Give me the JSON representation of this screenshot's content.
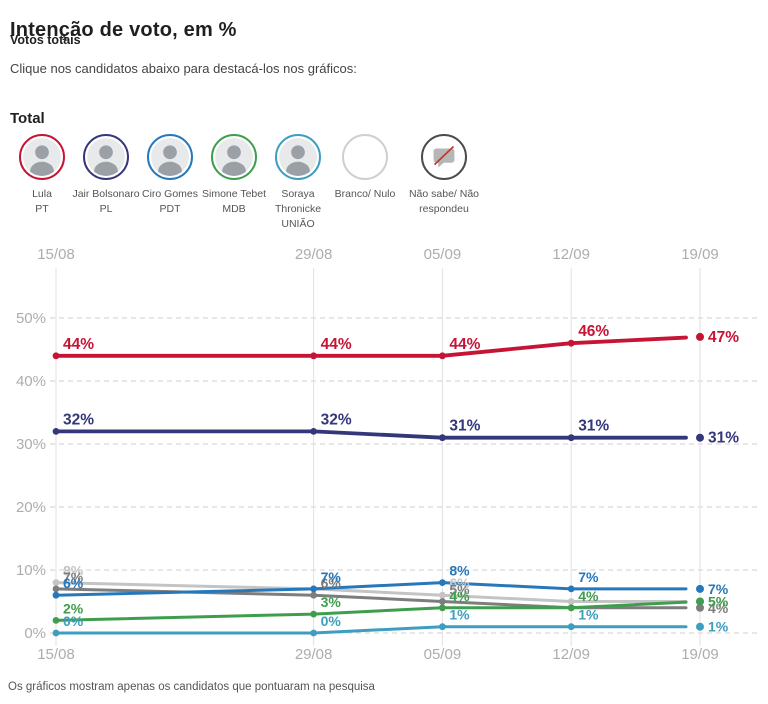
{
  "header": {
    "title": "Intenção de voto, em %",
    "subtitle": "Votos totais",
    "instruction": "Clique nos candidatos abaixo para destacá-los nos gráficos:"
  },
  "section": {
    "label": "Total"
  },
  "candidates": [
    {
      "id": "lula",
      "label_lines": [
        "Lula",
        "PT"
      ],
      "ring_color": "#c51434",
      "avatar": "photo"
    },
    {
      "id": "bolsonaro",
      "label_lines": [
        "Jair Bolsonaro",
        "PL"
      ],
      "ring_color": "#34387a",
      "avatar": "photo"
    },
    {
      "id": "ciro",
      "label_lines": [
        "Ciro Gomes",
        "PDT"
      ],
      "ring_color": "#2678bb",
      "avatar": "photo"
    },
    {
      "id": "tebet",
      "label_lines": [
        "Simone Tebet",
        "MDB"
      ],
      "ring_color": "#3f9e4d",
      "avatar": "photo"
    },
    {
      "id": "soraya",
      "label_lines": [
        "Soraya",
        "Thronicke",
        "UNIÃO"
      ],
      "ring_color": "#3d9ec0",
      "avatar": "photo"
    },
    {
      "id": "branco-nulo",
      "label_lines": [
        "Branco/ Nulo"
      ],
      "ring_color": "#cfcfcf",
      "avatar": "empty"
    },
    {
      "id": "nao-sabe",
      "label_lines": [
        "Não sabe/ Não",
        "respondeu"
      ],
      "ring_color": "#4c4c4c",
      "avatar": "no-answer"
    }
  ],
  "chart_data": {
    "type": "line",
    "x_labels": [
      "15/08",
      "29/08",
      "05/09",
      "12/09",
      "19/09"
    ],
    "x_days": [
      0,
      14,
      21,
      28,
      35
    ],
    "y_ticks": [
      "0%",
      "10%",
      "20%",
      "30%",
      "40%",
      "50%"
    ],
    "ylim": [
      0,
      50
    ],
    "grid": "horizontal-dashed, vertical-solid",
    "legend_position": "candidate avatars above chart",
    "series": [
      {
        "id": "branco-nulo",
        "name": "Branco/ Nulo",
        "color": "#c4c4c4",
        "width": 3,
        "values": [
          8,
          7,
          6,
          5,
          5
        ],
        "labels": [
          "8%",
          "7%",
          "6%",
          "",
          "5%"
        ]
      },
      {
        "id": "nao-sabe",
        "name": "Não sabe/ Não respondeu",
        "color": "#7d7d7d",
        "width": 3,
        "values": [
          7,
          6,
          5,
          4,
          4
        ],
        "labels": [
          "7%",
          "6%",
          "5%",
          "",
          "4%"
        ]
      },
      {
        "id": "soraya",
        "name": "Soraya Thronicke",
        "color": "#3d9ec0",
        "width": 3,
        "values": [
          0,
          0,
          1,
          1,
          1
        ],
        "labels": [
          "0%",
          "0%",
          "1%",
          "1%",
          "1%"
        ]
      },
      {
        "id": "tebet",
        "name": "Simone Tebet",
        "color": "#3f9e4d",
        "width": 3,
        "values": [
          2,
          3,
          4,
          4,
          5
        ],
        "labels": [
          "2%",
          "3%",
          "4%",
          "4%",
          "5%"
        ]
      },
      {
        "id": "ciro",
        "name": "Ciro Gomes",
        "color": "#2678bb",
        "width": 3,
        "values": [
          6,
          7,
          8,
          7,
          7
        ],
        "labels": [
          "6%",
          "7%",
          "8%",
          "7%",
          "7%"
        ]
      },
      {
        "id": "bolsonaro",
        "name": "Jair Bolsonaro",
        "color": "#34387a",
        "width": 3.8,
        "values": [
          32,
          32,
          31,
          31,
          31
        ],
        "labels": [
          "32%",
          "32%",
          "31%",
          "31%",
          "31%"
        ]
      },
      {
        "id": "lula",
        "name": "Lula",
        "color": "#c51434",
        "width": 3.8,
        "values": [
          44,
          44,
          44,
          46,
          47
        ],
        "labels": [
          "44%",
          "44%",
          "44%",
          "46%",
          "47%"
        ]
      }
    ]
  },
  "footer": {
    "note": "Os gráficos mostram apenas os candidatos que pontuaram na pesquisa"
  }
}
